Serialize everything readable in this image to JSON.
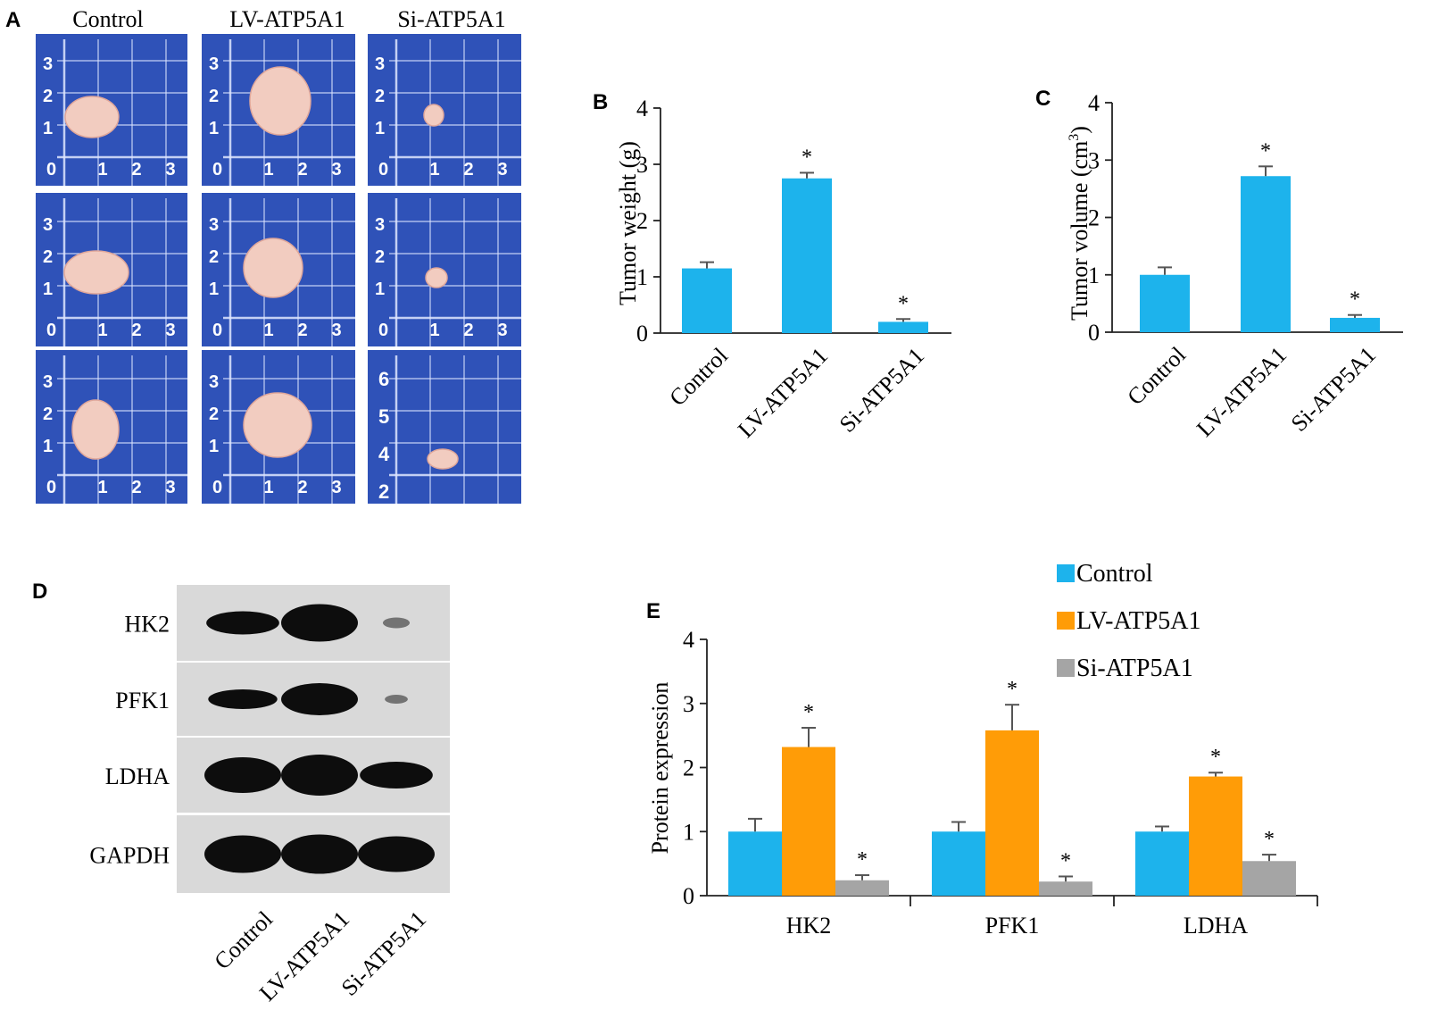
{
  "panels": {
    "A": "A",
    "B": "B",
    "C": "C",
    "D": "D",
    "E": "E"
  },
  "photos": {
    "column_labels": [
      "Control",
      "LV-ATP5A1",
      "Si-ATP5A1"
    ],
    "ruler_ticks_standard": [
      "0",
      "1",
      "2",
      "3"
    ],
    "ruler_ticks_last": [
      "2",
      "4",
      "5",
      "6"
    ],
    "colors": {
      "board": "#2f52b8",
      "grid": "#dfe6ff",
      "tumor": "#f2ccc0"
    }
  },
  "western_blot": {
    "proteins": [
      "HK2",
      "PFK1",
      "LDHA",
      "GAPDH"
    ],
    "lanes": [
      "Control",
      "LV-ATP5A1",
      "Si-ATP5A1"
    ],
    "colors": {
      "band": "#0d0d0d",
      "membrane": "#d9d9d9"
    }
  },
  "chart_data": [
    {
      "type": "bar",
      "panel": "B",
      "categories": [
        "Control",
        "LV-ATP5A1",
        "Si-ATP5A1"
      ],
      "values": [
        1.15,
        2.75,
        0.2
      ],
      "errors": [
        0.11,
        0.1,
        0.05
      ],
      "significance": [
        "",
        "*",
        "*"
      ],
      "ylabel": "Tumor weight (g)",
      "ylim": [
        0,
        4
      ],
      "yticks": [
        "0",
        "1",
        "2",
        "3",
        "4"
      ],
      "color": "#1db3ec"
    },
    {
      "type": "bar",
      "panel": "C",
      "categories": [
        "Control",
        "LV-ATP5A1",
        "Si-ATP5A1"
      ],
      "values": [
        1.0,
        2.72,
        0.25
      ],
      "errors": [
        0.13,
        0.17,
        0.05
      ],
      "significance": [
        "",
        "*",
        "*"
      ],
      "ylabel": "Tumor volume (cm",
      "ylabel_sup": "3",
      "ylabel_end": ")",
      "ylim": [
        0,
        4
      ],
      "yticks": [
        "0",
        "1",
        "2",
        "3",
        "4"
      ],
      "color": "#1db3ec"
    },
    {
      "type": "bar",
      "panel": "E",
      "categories": [
        "HK2",
        "PFK1",
        "LDHA"
      ],
      "series": [
        {
          "name": "Control",
          "values": [
            1.0,
            1.0,
            1.0
          ],
          "errors": [
            0.2,
            0.15,
            0.08
          ],
          "significance": [
            "",
            "",
            ""
          ],
          "color": "#1db3ec"
        },
        {
          "name": "LV-ATP5A1",
          "values": [
            2.32,
            2.58,
            1.86
          ],
          "errors": [
            0.3,
            0.4,
            0.06
          ],
          "significance": [
            "*",
            "*",
            "*"
          ],
          "color": "#ff9c07"
        },
        {
          "name": "Si-ATP5A1",
          "values": [
            0.24,
            0.22,
            0.54
          ],
          "errors": [
            0.08,
            0.08,
            0.1
          ],
          "significance": [
            "*",
            "*",
            "*"
          ],
          "color": "#a5a5a5"
        }
      ],
      "ylabel": "Protein expression",
      "ylim": [
        0,
        4
      ],
      "yticks": [
        "0",
        "1",
        "2",
        "3",
        "4"
      ],
      "legend": "top-right"
    }
  ]
}
